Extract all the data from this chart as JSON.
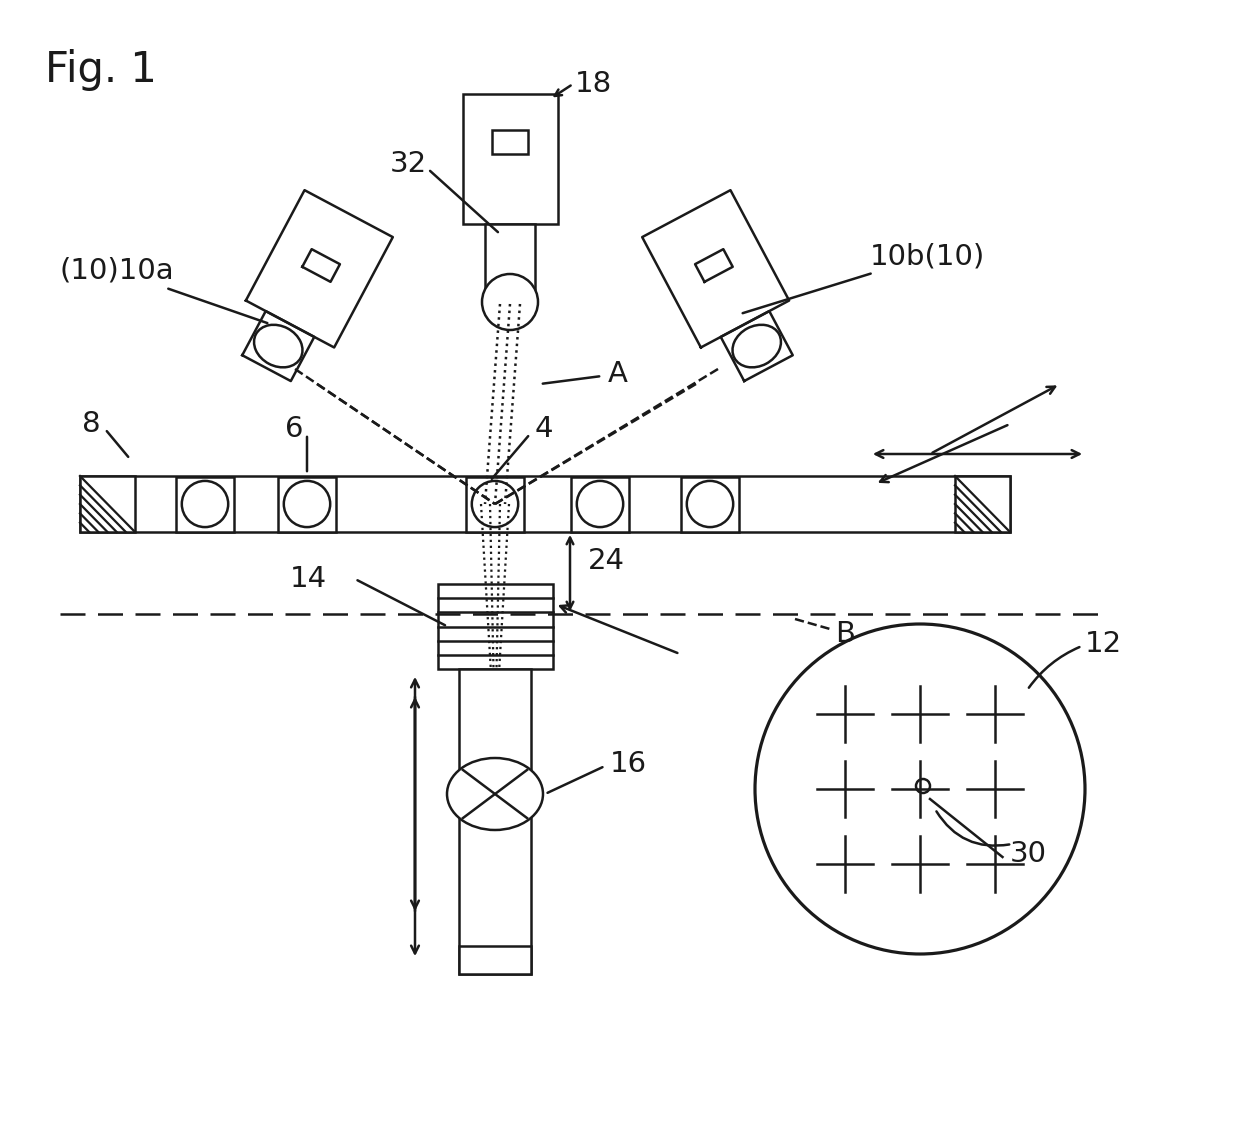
{
  "bg_color": "#ffffff",
  "line_color": "#1a1a1a",
  "labels": {
    "fig": "Fig. 1",
    "10a": "(10)10a",
    "10b": "10b(10)",
    "18": "18",
    "32": "32",
    "8": "8",
    "6": "6",
    "4": "4",
    "24": "24",
    "14": "14",
    "16": "16",
    "12": "12",
    "30": "30",
    "A": "A",
    "B": "B"
  }
}
